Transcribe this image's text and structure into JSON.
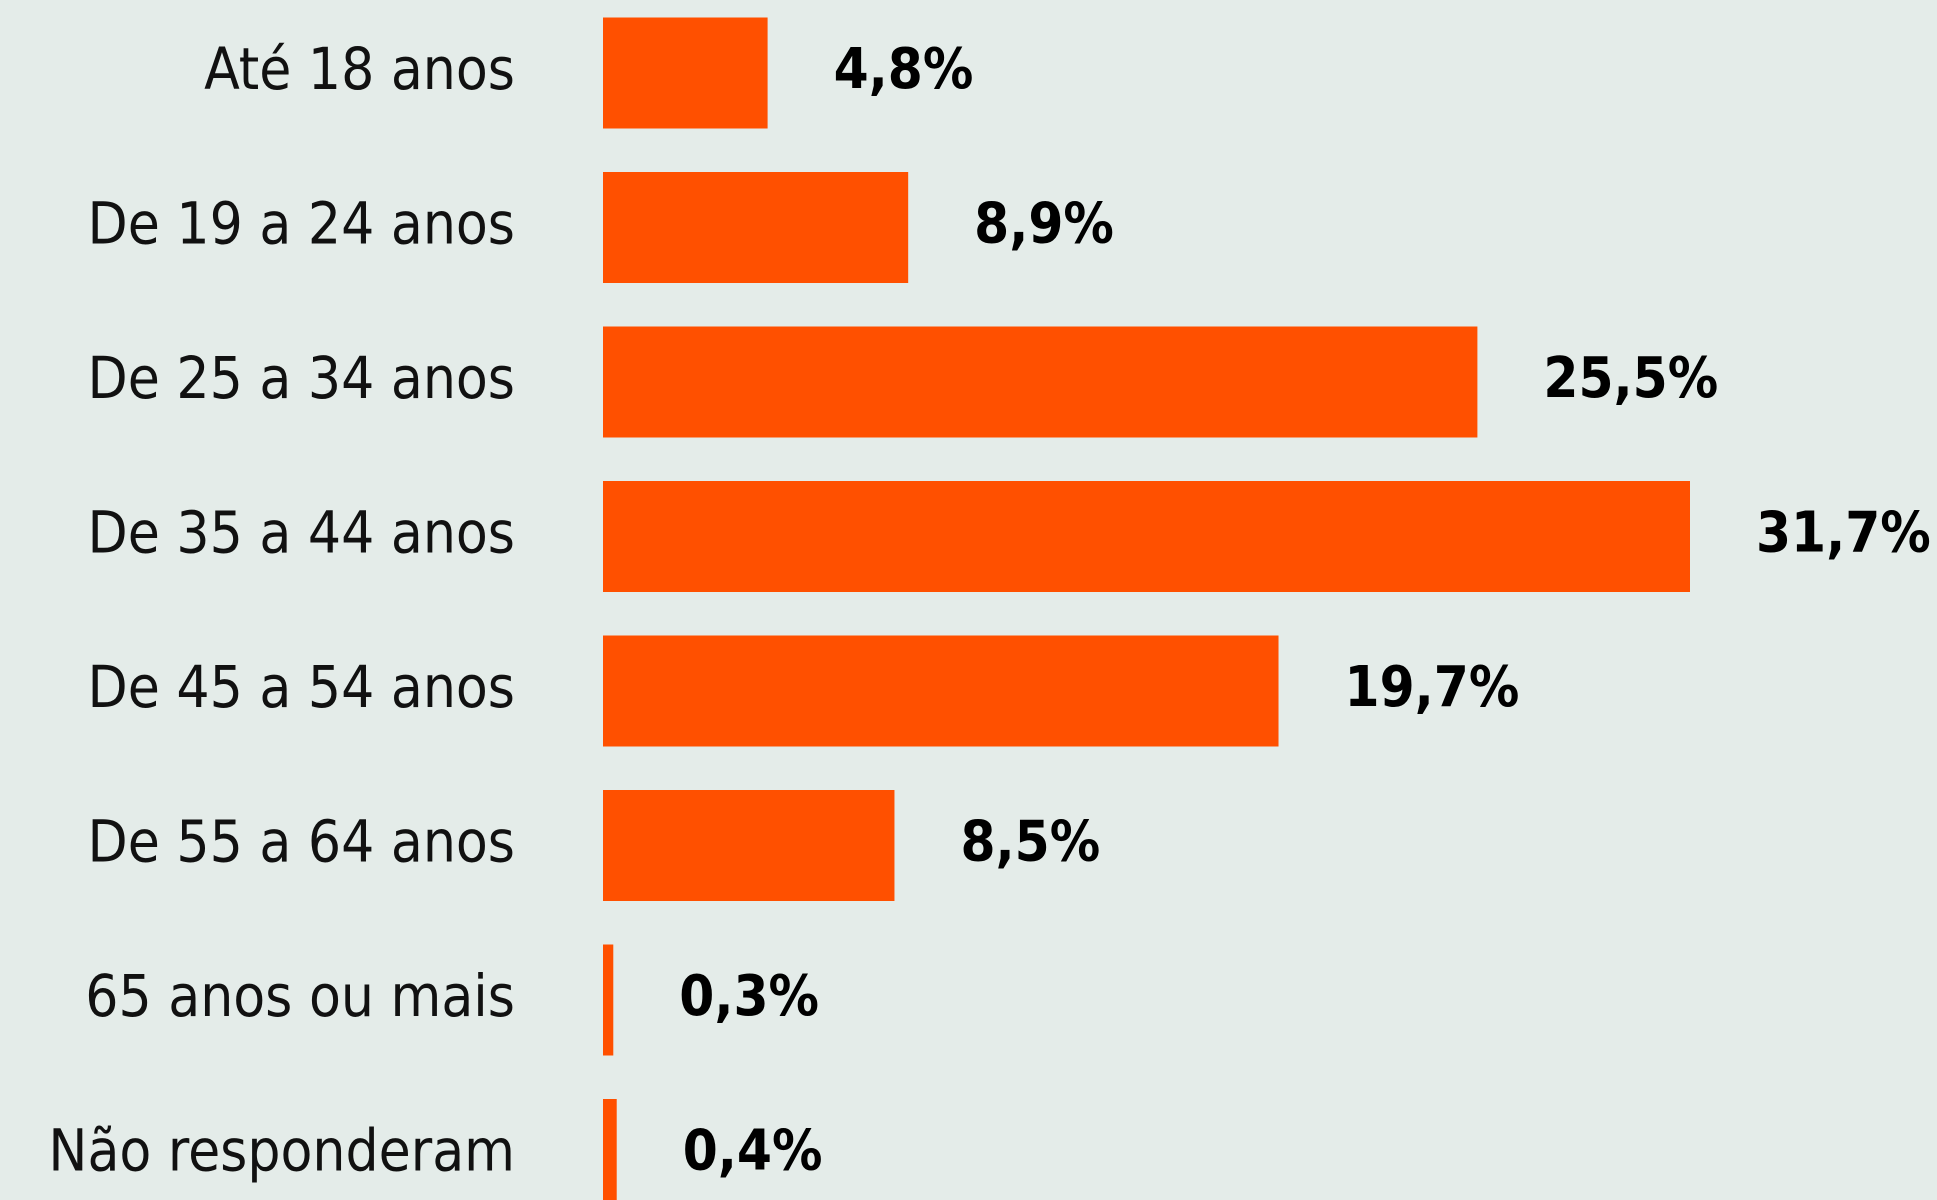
{
  "chart_data": {
    "type": "bar",
    "orientation": "horizontal",
    "categories": [
      "Até 18 anos",
      "De 19 a 24 anos",
      "De 25 a 34 anos",
      "De 35 a 44 anos",
      "De 45 a 54 anos",
      "De 55 a 64 anos",
      "65 anos ou mais",
      "Não responderam"
    ],
    "values": [
      4.8,
      8.9,
      25.5,
      31.7,
      19.7,
      8.5,
      0.3,
      0.4
    ],
    "value_labels": [
      "4,8%",
      "8,9%",
      "25,5%",
      "31,7%",
      "19,7%",
      "8,5%",
      "0,3%",
      "0,4%"
    ],
    "color": "#ff5000"
  }
}
